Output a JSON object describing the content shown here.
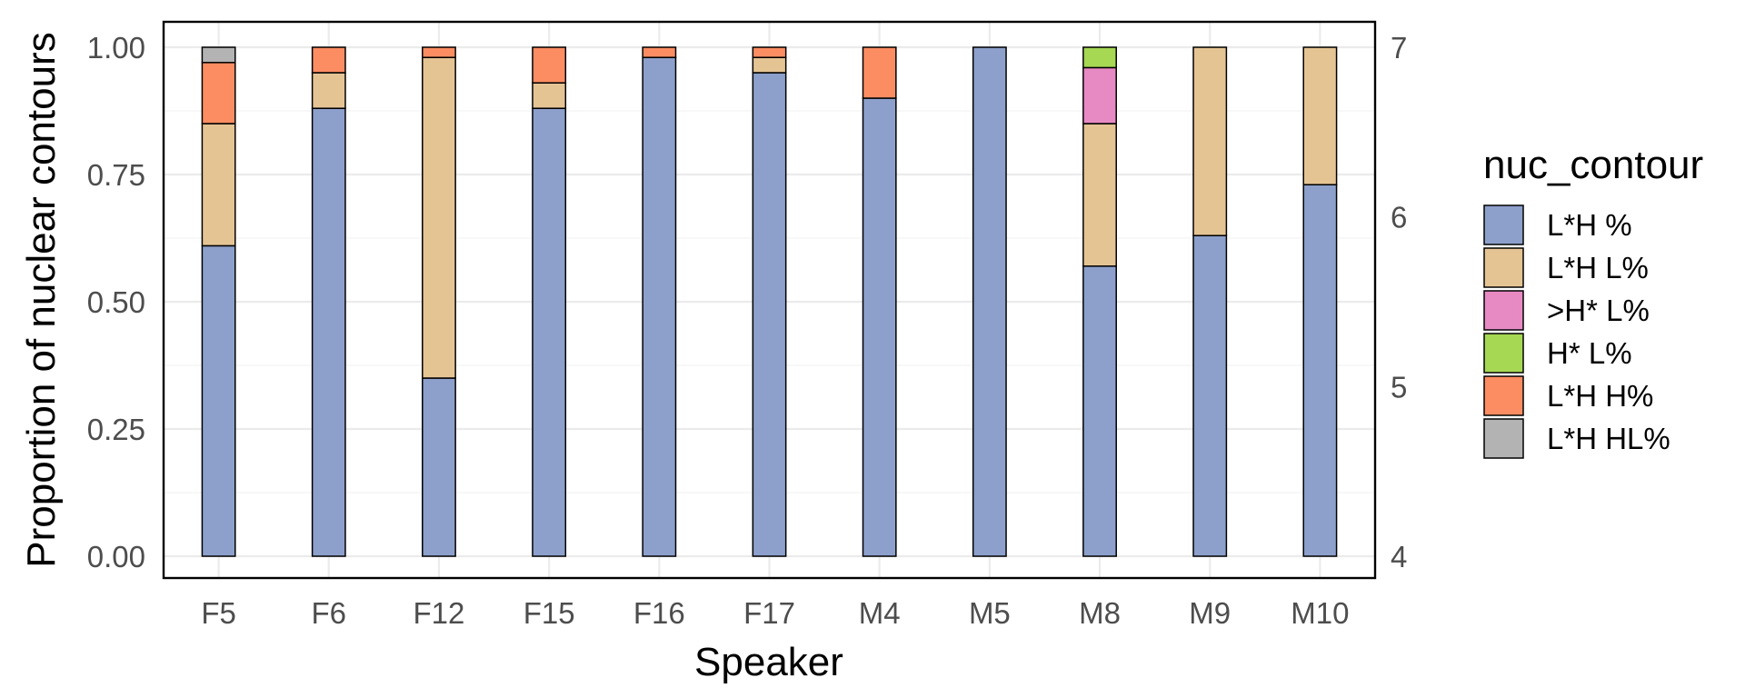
{
  "chart_data": {
    "type": "bar",
    "stacked": true,
    "title": "",
    "xlabel": "Speaker",
    "ylabel": "Proportion of nuclear contours",
    "ylim": [
      0,
      1
    ],
    "yticks": [
      "0.00",
      "0.25",
      "0.50",
      "0.75",
      "1.00"
    ],
    "secondary_y": {
      "range": [
        4,
        7
      ],
      "ticks": [
        "4",
        "5",
        "6",
        "7"
      ]
    },
    "categories": [
      "F5",
      "F6",
      "F12",
      "F15",
      "F16",
      "F17",
      "M4",
      "M5",
      "M8",
      "M9",
      "M10"
    ],
    "legend": {
      "title": "nuc_contour",
      "position": "right"
    },
    "grid": true,
    "series": [
      {
        "name": "L*H %",
        "color": "#8DA0CB",
        "values": [
          0.61,
          0.88,
          0.35,
          0.88,
          0.98,
          0.95,
          0.9,
          1.0,
          0.57,
          0.63,
          0.73
        ]
      },
      {
        "name": "L*H L%",
        "color": "#E5C494",
        "values": [
          0.24,
          0.07,
          0.63,
          0.05,
          0.0,
          0.03,
          0.0,
          0.0,
          0.28,
          0.37,
          0.27
        ]
      },
      {
        "name": ">H* L%",
        "color": "#E78AC3",
        "values": [
          0.0,
          0.0,
          0.0,
          0.0,
          0.0,
          0.0,
          0.0,
          0.0,
          0.11,
          0.0,
          0.0
        ]
      },
      {
        "name": "H* L%",
        "color": "#A6D854",
        "values": [
          0.0,
          0.0,
          0.0,
          0.0,
          0.0,
          0.0,
          0.0,
          0.0,
          0.04,
          0.0,
          0.0
        ]
      },
      {
        "name": "L*H H%",
        "color": "#FC8D62",
        "values": [
          0.12,
          0.05,
          0.02,
          0.07,
          0.02,
          0.02,
          0.1,
          0.0,
          0.0,
          0.0,
          0.0
        ]
      },
      {
        "name": "L*H HL%",
        "color": "#B3B3B3",
        "values": [
          0.03,
          0.0,
          0.0,
          0.0,
          0.0,
          0.0,
          0.0,
          0.0,
          0.0,
          0.0,
          0.0
        ]
      }
    ]
  }
}
